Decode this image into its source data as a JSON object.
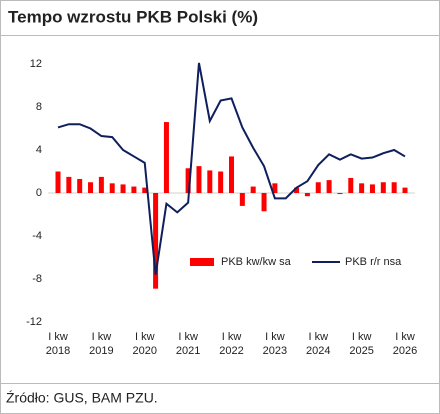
{
  "chart_data": {
    "type": "bar_line",
    "title": "Tempo wzrostu PKB Polski (%)",
    "source": "Źródło: GUS, BAM PZU.",
    "categories": [
      "I kw\n2018",
      null,
      null,
      null,
      "I kw\n2019",
      null,
      null,
      null,
      "I kw\n2020",
      null,
      null,
      null,
      "I kw\n2021",
      null,
      null,
      null,
      "I kw\n2022",
      null,
      null,
      null,
      "I kw\n2023",
      null,
      null,
      null,
      "I kw\n2024",
      null,
      null,
      null,
      "I kw\n2025",
      null,
      null,
      null,
      "I kw\n2026"
    ],
    "series": [
      {
        "name": "PKB kw/kw sa",
        "kind": "bar",
        "color": "#ff0000",
        "values": [
          2.0,
          1.5,
          1.3,
          1.0,
          1.5,
          0.9,
          0.8,
          0.6,
          0.5,
          -8.9,
          6.6,
          0.0,
          2.3,
          2.5,
          2.1,
          2.0,
          3.4,
          -1.2,
          0.6,
          -1.7,
          0.9,
          0.0,
          0.5,
          -0.3,
          1.0,
          1.2,
          -0.1,
          1.4,
          0.9,
          0.8,
          1.0,
          1.0,
          0.5
        ]
      },
      {
        "name": "PKB r/r nsa",
        "kind": "line",
        "color": "#0f1f5c",
        "values": [
          6.1,
          6.4,
          6.4,
          6.0,
          5.3,
          5.2,
          4.0,
          3.4,
          2.8,
          -7.6,
          -1.0,
          -1.8,
          -0.9,
          12.1,
          6.7,
          8.6,
          8.8,
          6.1,
          4.2,
          2.5,
          -0.5,
          -0.5,
          0.5,
          1.1,
          2.6,
          3.6,
          3.1,
          3.6,
          3.2,
          3.3,
          3.7,
          4.0,
          3.4
        ]
      }
    ],
    "ylim": [
      -12,
      12
    ],
    "yticks": [
      -12,
      -8,
      -4,
      0,
      4,
      8,
      12
    ]
  }
}
